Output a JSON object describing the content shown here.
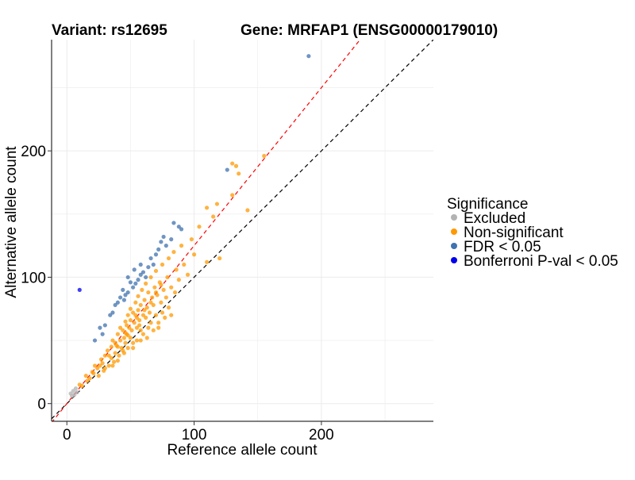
{
  "header": {
    "variant_text": "Variant: rs12695",
    "gene_text": "Gene: MRFAP1 (ENSG00000179010)"
  },
  "chart_data": {
    "type": "scatter",
    "xlabel": "Reference allele count",
    "ylabel": "Alternative allele count",
    "xlim": [
      -12,
      288
    ],
    "ylim": [
      -14,
      288
    ],
    "xticks": [
      0,
      100,
      200
    ],
    "yticks": [
      0,
      100,
      200
    ],
    "grid": true,
    "legend": {
      "title": "Significance",
      "placement": "right",
      "entries": [
        {
          "label": "Excluded",
          "color": "#b3b3b3"
        },
        {
          "label": "Non-significant",
          "color": "#ff9900"
        },
        {
          "label": "FDR < 0.05",
          "color": "#3f72af"
        },
        {
          "label": "Bonferroni P-val < 0.05",
          "color": "#0000ee"
        }
      ]
    },
    "reference_lines": [
      {
        "style": "dashed",
        "color": "#000000",
        "slope": 1.0,
        "intercept": 0
      },
      {
        "style": "dashed",
        "color": "#ff0000",
        "slope": 1.25,
        "intercept": 0
      }
    ],
    "series": [
      {
        "name": "Excluded",
        "color": "#b3b3b3",
        "points": [
          [
            3,
            8
          ],
          [
            5,
            10
          ],
          [
            7,
            12
          ],
          [
            6,
            7
          ],
          [
            8,
            9
          ],
          [
            4,
            6
          ]
        ]
      },
      {
        "name": "Non-significant",
        "color": "#ff9900",
        "points": [
          [
            10,
            15
          ],
          [
            12,
            14
          ],
          [
            15,
            22
          ],
          [
            18,
            20
          ],
          [
            20,
            25
          ],
          [
            22,
            30
          ],
          [
            24,
            28
          ],
          [
            25,
            22
          ],
          [
            27,
            35
          ],
          [
            28,
            32
          ],
          [
            30,
            38
          ],
          [
            30,
            28
          ],
          [
            32,
            42
          ],
          [
            33,
            30
          ],
          [
            35,
            45
          ],
          [
            35,
            36
          ],
          [
            36,
            50
          ],
          [
            37,
            33
          ],
          [
            38,
            48
          ],
          [
            38,
            40
          ],
          [
            40,
            55
          ],
          [
            40,
            45
          ],
          [
            41,
            38
          ],
          [
            42,
            60
          ],
          [
            42,
            50
          ],
          [
            43,
            44
          ],
          [
            44,
            58
          ],
          [
            45,
            52
          ],
          [
            45,
            40
          ],
          [
            46,
            65
          ],
          [
            46,
            48
          ],
          [
            47,
            62
          ],
          [
            47,
            55
          ],
          [
            48,
            70
          ],
          [
            48,
            44
          ],
          [
            49,
            60
          ],
          [
            50,
            75
          ],
          [
            50,
            66
          ],
          [
            50,
            52
          ],
          [
            51,
            58
          ],
          [
            52,
            72
          ],
          [
            52,
            48
          ],
          [
            53,
            64
          ],
          [
            54,
            80
          ],
          [
            54,
            70
          ],
          [
            55,
            60
          ],
          [
            55,
            50
          ],
          [
            56,
            85
          ],
          [
            56,
            74
          ],
          [
            57,
            66
          ],
          [
            58,
            78
          ],
          [
            58,
            58
          ],
          [
            59,
            90
          ],
          [
            60,
            70
          ],
          [
            60,
            55
          ],
          [
            61,
            82
          ],
          [
            62,
            68
          ],
          [
            62,
            95
          ],
          [
            63,
            76
          ],
          [
            64,
            60
          ],
          [
            64,
            88
          ],
          [
            65,
            72
          ],
          [
            66,
            100
          ],
          [
            66,
            64
          ],
          [
            67,
            84
          ],
          [
            68,
            78
          ],
          [
            69,
            92
          ],
          [
            70,
            70
          ],
          [
            70,
            105
          ],
          [
            71,
            86
          ],
          [
            72,
            64
          ],
          [
            73,
            96
          ],
          [
            74,
            80
          ],
          [
            75,
            110
          ],
          [
            75,
            72
          ],
          [
            76,
            90
          ],
          [
            78,
            84
          ],
          [
            79,
            100
          ],
          [
            80,
            76
          ],
          [
            80,
            115
          ],
          [
            82,
            92
          ],
          [
            84,
            120
          ],
          [
            85,
            88
          ],
          [
            86,
            106
          ],
          [
            88,
            98
          ],
          [
            90,
            125
          ],
          [
            92,
            110
          ],
          [
            95,
            102
          ],
          [
            98,
            130
          ],
          [
            100,
            118
          ],
          [
            104,
            140
          ],
          [
            110,
            155
          ],
          [
            115,
            148
          ],
          [
            118,
            158
          ],
          [
            130,
            165
          ],
          [
            135,
            182
          ],
          [
            142,
            153
          ],
          [
            133,
            188
          ],
          [
            155,
            196
          ],
          [
            130,
            190
          ],
          [
            40,
            34
          ],
          [
            52,
            44
          ],
          [
            58,
            50
          ],
          [
            63,
            52
          ],
          [
            68,
            58
          ],
          [
            72,
            60
          ],
          [
            77,
            68
          ],
          [
            82,
            70
          ],
          [
            44,
            42
          ],
          [
            36,
            30
          ],
          [
            29,
            26
          ],
          [
            48,
            54
          ],
          [
            55,
            68
          ],
          [
            61,
            74
          ],
          [
            66,
            80
          ],
          [
            70,
            88
          ],
          [
            74,
            94
          ],
          [
            57,
            62
          ],
          [
            46,
            56
          ],
          [
            39,
            46
          ],
          [
            33,
            38
          ],
          [
            26,
            30
          ],
          [
            21,
            24
          ],
          [
            16,
            18
          ],
          [
            110,
            112
          ],
          [
            120,
            115
          ]
        ]
      },
      {
        "name": "FDR < 0.05",
        "color": "#3f72af",
        "points": [
          [
            190,
            275
          ],
          [
            126,
            185
          ],
          [
            84,
            143
          ],
          [
            74,
            128
          ],
          [
            78,
            125
          ],
          [
            72,
            122
          ],
          [
            70,
            118
          ],
          [
            66,
            115
          ],
          [
            68,
            110
          ],
          [
            64,
            108
          ],
          [
            60,
            104
          ],
          [
            62,
            100
          ],
          [
            58,
            102
          ],
          [
            56,
            98
          ],
          [
            54,
            95
          ],
          [
            52,
            92
          ],
          [
            50,
            96
          ],
          [
            48,
            88
          ],
          [
            46,
            86
          ],
          [
            45,
            82
          ],
          [
            42,
            84
          ],
          [
            40,
            80
          ],
          [
            38,
            78
          ],
          [
            44,
            90
          ],
          [
            58,
            110
          ],
          [
            76,
            132
          ],
          [
            88,
            140
          ],
          [
            36,
            72
          ],
          [
            34,
            70
          ],
          [
            30,
            62
          ],
          [
            26,
            60
          ],
          [
            22,
            50
          ],
          [
            28,
            55
          ],
          [
            48,
            100
          ],
          [
            53,
            106
          ],
          [
            90,
            138
          ],
          [
            82,
            130
          ]
        ]
      },
      {
        "name": "Bonferroni P-val < 0.05",
        "color": "#0000ee",
        "points": [
          [
            10,
            90
          ]
        ]
      }
    ]
  }
}
